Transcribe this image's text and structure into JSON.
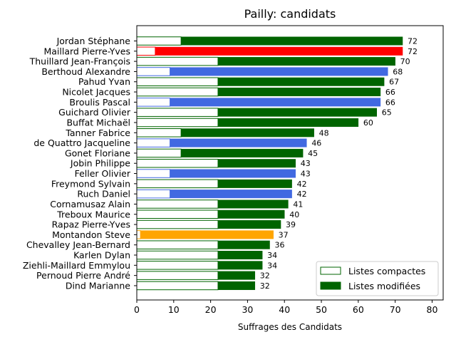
{
  "chart_data": {
    "type": "bar",
    "orientation": "horizontal",
    "stacked": true,
    "title": "Pailly: candidats",
    "xlabel": "Suffrages des Candidats",
    "ylabel": "",
    "xlim": [
      0,
      83
    ],
    "xticks": [
      0,
      10,
      20,
      30,
      40,
      50,
      60,
      70,
      80
    ],
    "legend_position": "bottom-right",
    "legend": [
      {
        "label": "Listes compactes",
        "style": "outline",
        "color": "#006400"
      },
      {
        "label": "Listes modifiées",
        "style": "filled",
        "color": "#006400"
      }
    ],
    "candidates": [
      {
        "name": "Jordan Stéphane",
        "compact": 12,
        "total": 72,
        "color": "#006400"
      },
      {
        "name": "Maillard Pierre-Yves",
        "compact": 5,
        "total": 72,
        "color": "#ff0000"
      },
      {
        "name": "Thuillard Jean-François",
        "compact": 22,
        "total": 70,
        "color": "#006400"
      },
      {
        "name": "Berthoud Alexandre",
        "compact": 9,
        "total": 68,
        "color": "#4169e1"
      },
      {
        "name": "Pahud Yvan",
        "compact": 22,
        "total": 67,
        "color": "#006400"
      },
      {
        "name": "Nicolet Jacques",
        "compact": 22,
        "total": 66,
        "color": "#006400"
      },
      {
        "name": "Broulis Pascal",
        "compact": 9,
        "total": 66,
        "color": "#4169e1"
      },
      {
        "name": "Guichard Olivier",
        "compact": 22,
        "total": 65,
        "color": "#006400"
      },
      {
        "name": "Buffat Michaël",
        "compact": 22,
        "total": 60,
        "color": "#006400"
      },
      {
        "name": "Tanner Fabrice",
        "compact": 12,
        "total": 48,
        "color": "#006400"
      },
      {
        "name": "de Quattro Jacqueline",
        "compact": 9,
        "total": 46,
        "color": "#4169e1"
      },
      {
        "name": "Gonet Floriane",
        "compact": 12,
        "total": 45,
        "color": "#006400"
      },
      {
        "name": "Jobin Philippe",
        "compact": 22,
        "total": 43,
        "color": "#006400"
      },
      {
        "name": "Feller Olivier",
        "compact": 9,
        "total": 43,
        "color": "#4169e1"
      },
      {
        "name": "Freymond Sylvain",
        "compact": 22,
        "total": 42,
        "color": "#006400"
      },
      {
        "name": "Ruch Daniel",
        "compact": 9,
        "total": 42,
        "color": "#4169e1"
      },
      {
        "name": "Cornamusaz Alain",
        "compact": 22,
        "total": 41,
        "color": "#006400"
      },
      {
        "name": "Treboux Maurice",
        "compact": 22,
        "total": 40,
        "color": "#006400"
      },
      {
        "name": "Rapaz Pierre-Yves",
        "compact": 22,
        "total": 39,
        "color": "#006400"
      },
      {
        "name": "Montandon Steve",
        "compact": 1,
        "total": 37,
        "color": "#ffa500"
      },
      {
        "name": "Chevalley Jean-Bernard",
        "compact": 22,
        "total": 36,
        "color": "#006400"
      },
      {
        "name": "Karlen Dylan",
        "compact": 22,
        "total": 34,
        "color": "#006400"
      },
      {
        "name": "Ziehli-Maillard Emmylou",
        "compact": 22,
        "total": 34,
        "color": "#006400"
      },
      {
        "name": "Pernoud Pierre André",
        "compact": 22,
        "total": 32,
        "color": "#006400"
      },
      {
        "name": "Dind Marianne",
        "compact": 22,
        "total": 32,
        "color": "#006400"
      }
    ]
  }
}
